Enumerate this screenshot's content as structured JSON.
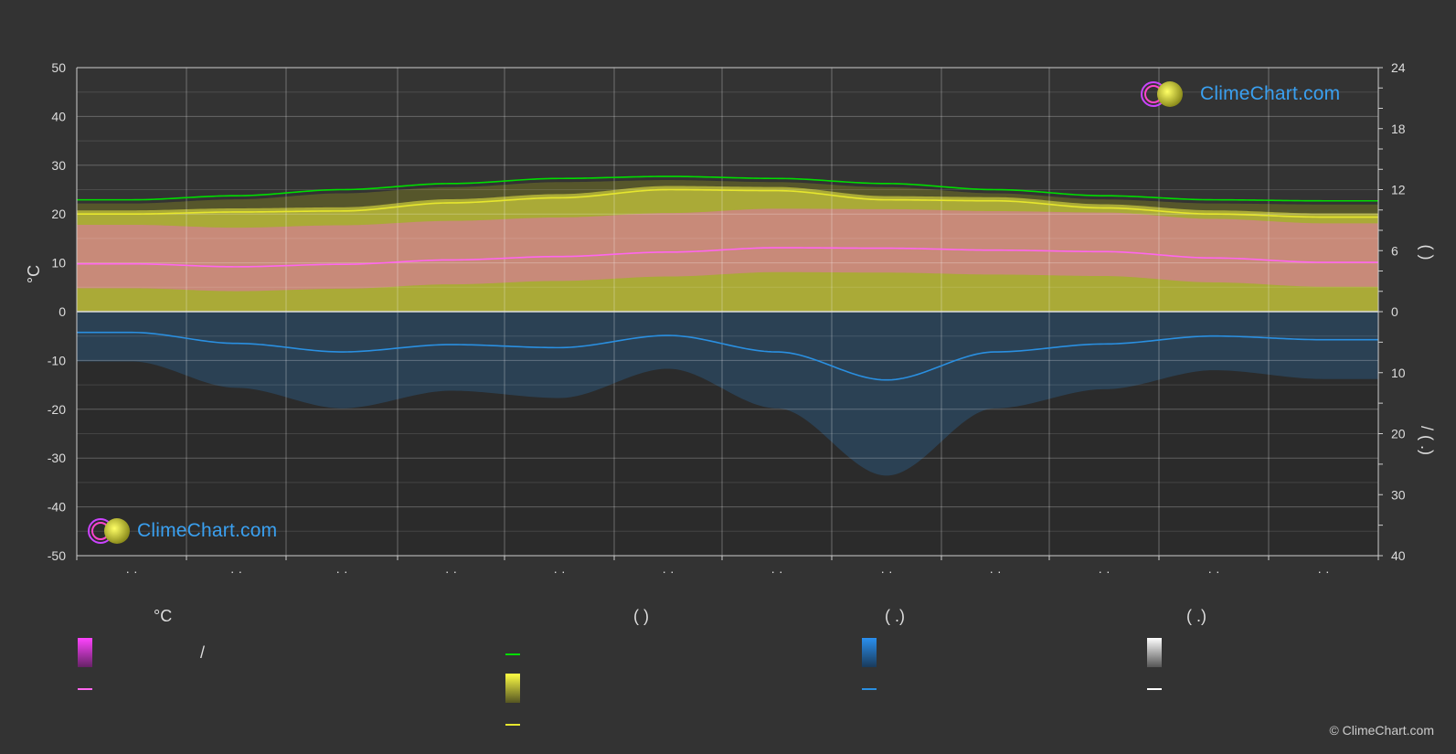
{
  "chart_data": {
    "type": "area",
    "months": [
      "· ·",
      "· ·",
      "· ·",
      "· ·",
      "· ·",
      "· ·",
      "· ·",
      "· ·",
      "· ·",
      "· ·",
      "· ·",
      "· ·"
    ],
    "left_axis": {
      "label": "°C",
      "range": [
        -50,
        50
      ],
      "ticks": [
        50,
        40,
        30,
        20,
        10,
        0,
        -10,
        -20,
        -30,
        -40,
        -50
      ]
    },
    "right_axis_top": {
      "label": "(   )",
      "range": [
        0,
        24
      ],
      "ticks": [
        24,
        18,
        12,
        6,
        0
      ]
    },
    "right_axis_bottom": {
      "label": "/ (   .)",
      "range": [
        0,
        40
      ],
      "ticks": [
        0,
        10,
        20,
        30,
        40
      ]
    },
    "series": [
      {
        "key": "daylight",
        "color": "#00dd00",
        "axis": "hours",
        "values": [
          11.0,
          11.4,
          12.0,
          12.6,
          13.1,
          13.3,
          13.1,
          12.6,
          12.0,
          11.4,
          11.0,
          10.9
        ]
      },
      {
        "key": "sunshine",
        "color": "#e6e62e",
        "axis": "hours",
        "values": [
          9.6,
          9.8,
          9.9,
          10.7,
          11.2,
          12.0,
          11.9,
          11.0,
          10.9,
          10.2,
          9.6,
          9.3
        ]
      },
      {
        "key": "avg_temp",
        "color": "#ff66ee",
        "axis": "temp",
        "values": [
          9.8,
          9.2,
          9.7,
          10.6,
          11.3,
          12.2,
          13.1,
          13.0,
          12.6,
          12.3,
          11.0,
          10.1
        ]
      },
      {
        "key": "precip",
        "color": "#2a8fe0",
        "axis": "precip",
        "values": [
          3.4,
          5.2,
          6.6,
          5.4,
          5.9,
          3.9,
          6.6,
          11.2,
          6.6,
          5.3,
          4.0,
          4.6
        ]
      }
    ],
    "grid": true
  },
  "legend": {
    "col1_title": "°C",
    "col1_sep": "/",
    "col2_title": "(          )",
    "col3_title": "(   .)",
    "col4_title": "(   .)"
  },
  "brand": {
    "name": "ClimeChart.com",
    "copyright": "© ClimeChart.com"
  },
  "colors": {
    "background": "#333333",
    "temp_band": "#e070b0",
    "sun_band": "#b8b83a",
    "precip_band": "#2a6aa0",
    "brand_blue": "#3aa0f0"
  }
}
